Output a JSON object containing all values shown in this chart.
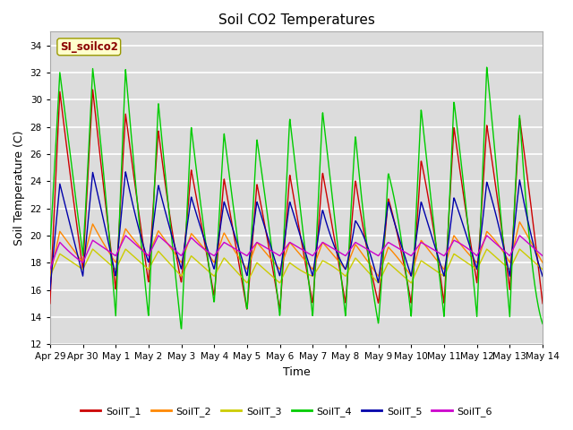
{
  "title": "Soil CO2 Temperatures",
  "xlabel": "Time",
  "ylabel": "Soil Temperature (C)",
  "ylim": [
    12,
    35
  ],
  "yticks": [
    12,
    14,
    16,
    18,
    20,
    22,
    24,
    26,
    28,
    30,
    32,
    34
  ],
  "xtick_labels": [
    "Apr 29",
    "Apr 30",
    "May 1",
    "May 2",
    "May 3",
    "May 4",
    "May 5",
    "May 6",
    "May 7",
    "May 8",
    "May 9",
    "May 10",
    "May 11",
    "May 12",
    "May 13",
    "May 14"
  ],
  "xtick_positions": [
    0,
    1,
    2,
    3,
    4,
    5,
    6,
    7,
    8,
    9,
    10,
    11,
    12,
    13,
    14,
    15
  ],
  "station_label": "SI_soilco2",
  "series": [
    {
      "name": "SoilT_1",
      "color": "#cc0000"
    },
    {
      "name": "SoilT_2",
      "color": "#ff8800"
    },
    {
      "name": "SoilT_3",
      "color": "#cccc00"
    },
    {
      "name": "SoilT_4",
      "color": "#00cc00"
    },
    {
      "name": "SoilT_5",
      "color": "#0000aa"
    },
    {
      "name": "SoilT_6",
      "color": "#cc00cc"
    }
  ],
  "bg_color": "#dcdcdc",
  "grid_color": "#ffffff",
  "title_fontsize": 11,
  "axis_label_fontsize": 9,
  "tick_fontsize": 7.5
}
